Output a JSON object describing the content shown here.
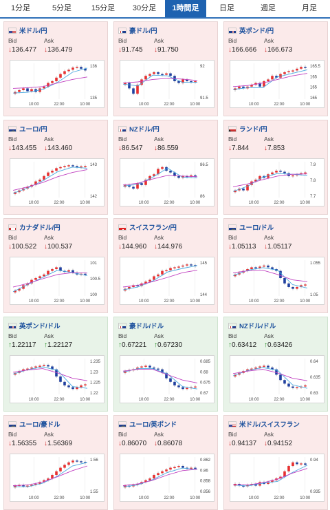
{
  "tabs": [
    "1分足",
    "5分足",
    "15分足",
    "30分足",
    "1時間足",
    "日足",
    "週足",
    "月足"
  ],
  "active_tab": 4,
  "bid_label": "Bid",
  "ask_label": "Ask",
  "x_ticks": [
    "10:00",
    "22:00",
    "10:00"
  ],
  "colors": {
    "up_candle": "#e83030",
    "down_candle": "#2040a0",
    "ma_short": "#4aa8e0",
    "ma_long": "#c040c0"
  },
  "cards": [
    {
      "pair": "米ドル/円",
      "flag": "us-flag",
      "dir": "down",
      "bid": "136.477",
      "ask": "136.479",
      "ticks": [
        "136",
        "135"
      ],
      "trend": [
        0.2,
        0.25,
        0.3,
        0.22,
        0.28,
        0.2,
        0.3,
        0.35,
        0.45,
        0.5,
        0.6,
        0.7,
        0.78,
        0.82,
        0.88,
        0.9,
        0.85,
        0.8
      ],
      "ma": [
        0.3,
        0.32,
        0.35,
        0.45,
        0.55,
        0.62
      ]
    },
    {
      "pair": "豪ドル/円",
      "flag": "au-flag",
      "dir": "down",
      "bid": "91.745",
      "ask": "91.750",
      "ticks": [
        "92",
        "91.5"
      ],
      "trend": [
        0.45,
        0.3,
        0.15,
        0.4,
        0.55,
        0.65,
        0.7,
        0.75,
        0.7,
        0.68,
        0.72,
        0.65,
        0.5,
        0.45,
        0.55,
        0.5,
        0.48,
        0.5
      ],
      "ma": [
        0.45,
        0.48,
        0.55,
        0.58,
        0.56,
        0.52
      ]
    },
    {
      "pair": "英ポンド/円",
      "flag": "uk-flag",
      "dir": "down",
      "bid": "166.666",
      "ask": "166.673",
      "ticks": [
        "165.5",
        "165",
        "165",
        "165"
      ],
      "trend": [
        0.3,
        0.35,
        0.3,
        0.35,
        0.4,
        0.45,
        0.35,
        0.5,
        0.55,
        0.65,
        0.6,
        0.7,
        0.75,
        0.78,
        0.8,
        0.85,
        0.9,
        0.88
      ],
      "ma": [
        0.35,
        0.38,
        0.45,
        0.55,
        0.65,
        0.72
      ]
    },
    {
      "pair": "ユーロ/円",
      "flag": "eu-flag",
      "dir": "down",
      "bid": "143.455",
      "ask": "143.460",
      "ticks": [
        "143",
        "142"
      ],
      "trend": [
        0.15,
        0.2,
        0.25,
        0.3,
        0.35,
        0.45,
        0.5,
        0.6,
        0.7,
        0.75,
        0.82,
        0.85,
        0.88,
        0.9,
        0.88,
        0.85,
        0.87,
        0.88
      ],
      "ma": [
        0.2,
        0.3,
        0.42,
        0.58,
        0.7,
        0.78
      ]
    },
    {
      "pair": "NZドル/円",
      "flag": "nz-flag",
      "dir": "down",
      "bid": "86.547",
      "ask": "86.559",
      "ticks": [
        "86.5",
        "86"
      ],
      "trend": [
        0.35,
        0.3,
        0.25,
        0.4,
        0.35,
        0.5,
        0.6,
        0.65,
        0.8,
        0.85,
        0.75,
        0.7,
        0.6,
        0.55,
        0.6,
        0.58,
        0.62,
        0.6
      ],
      "ma": [
        0.35,
        0.4,
        0.52,
        0.62,
        0.6,
        0.58
      ]
    },
    {
      "pair": "ランド/円",
      "flag": "za-flag",
      "dir": "down",
      "bid": "7.844",
      "ask": "7.853",
      "ticks": [
        "7.9",
        "7.8",
        "7.7"
      ],
      "trend": [
        0.2,
        0.25,
        0.2,
        0.35,
        0.45,
        0.5,
        0.6,
        0.55,
        0.65,
        0.7,
        0.75,
        0.72,
        0.68,
        0.6,
        0.62,
        0.65,
        0.68,
        0.7
      ],
      "ma": [
        0.3,
        0.38,
        0.5,
        0.6,
        0.65,
        0.66
      ]
    },
    {
      "pair": "カナダドル/円",
      "flag": "ca-flag",
      "dir": "down",
      "bid": "100.522",
      "ask": "100.537",
      "ticks": [
        "101",
        "100.5",
        "100"
      ],
      "trend": [
        0.15,
        0.2,
        0.3,
        0.35,
        0.45,
        0.5,
        0.55,
        0.6,
        0.7,
        0.75,
        0.8,
        0.7,
        0.68,
        0.72,
        0.65,
        0.6,
        0.62,
        0.6
      ],
      "ma": [
        0.25,
        0.35,
        0.48,
        0.6,
        0.65,
        0.64
      ]
    },
    {
      "pair": "スイスフラン/円",
      "flag": "ch-flag",
      "dir": "down",
      "bid": "144.960",
      "ask": "144.976",
      "ticks": [
        "145",
        "144"
      ],
      "trend": [
        0.2,
        0.25,
        0.3,
        0.28,
        0.35,
        0.4,
        0.45,
        0.55,
        0.6,
        0.7,
        0.72,
        0.78,
        0.8,
        0.82,
        0.85,
        0.88,
        0.86,
        0.84
      ],
      "ma": [
        0.25,
        0.3,
        0.4,
        0.52,
        0.65,
        0.72
      ]
    },
    {
      "pair": "ユーロ/ドル",
      "flag": "eu-flag",
      "dir": "down",
      "bid": "1.05113",
      "ask": "1.05117",
      "ticks": [
        "1.055",
        "1.05"
      ],
      "trend": [
        0.6,
        0.65,
        0.7,
        0.75,
        0.8,
        0.78,
        0.82,
        0.85,
        0.8,
        0.75,
        0.7,
        0.5,
        0.35,
        0.25,
        0.2,
        0.25,
        0.3,
        0.32
      ],
      "ma": [
        0.65,
        0.7,
        0.72,
        0.6,
        0.45,
        0.4
      ]
    },
    {
      "pair": "英ポンド/ドル",
      "flag": "uk-flag",
      "dir": "up",
      "bid": "1.22117",
      "ask": "1.22127",
      "ticks": [
        "1.235",
        "1.23",
        "1.225",
        "1.22"
      ],
      "trend": [
        0.6,
        0.65,
        0.7,
        0.72,
        0.75,
        0.78,
        0.8,
        0.82,
        0.78,
        0.7,
        0.5,
        0.35,
        0.25,
        0.2,
        0.15,
        0.2,
        0.25,
        0.28
      ],
      "ma": [
        0.62,
        0.68,
        0.72,
        0.6,
        0.45,
        0.38
      ]
    },
    {
      "pair": "豪ドル/ドル",
      "flag": "au-flag",
      "dir": "up",
      "bid": "0.67221",
      "ask": "0.67230",
      "ticks": [
        "0.685",
        "0.68",
        "0.675",
        "0.67"
      ],
      "trend": [
        0.65,
        0.68,
        0.7,
        0.75,
        0.78,
        0.8,
        0.75,
        0.72,
        0.7,
        0.6,
        0.45,
        0.35,
        0.25,
        0.2,
        0.15,
        0.18,
        0.2,
        0.22
      ],
      "ma": [
        0.65,
        0.7,
        0.7,
        0.55,
        0.4,
        0.32
      ]
    },
    {
      "pair": "NZドル/ドル",
      "flag": "nz-flag",
      "dir": "up",
      "bid": "0.63412",
      "ask": "0.63426",
      "ticks": [
        "0.64",
        "0.635",
        "0.63"
      ],
      "trend": [
        0.55,
        0.6,
        0.65,
        0.7,
        0.72,
        0.75,
        0.78,
        0.8,
        0.75,
        0.7,
        0.55,
        0.4,
        0.3,
        0.22,
        0.18,
        0.2,
        0.22,
        0.25
      ],
      "ma": [
        0.58,
        0.65,
        0.7,
        0.6,
        0.45,
        0.38
      ]
    },
    {
      "pair": "ユーロ/豪ドル",
      "flag": "eu-flag",
      "dir": "down",
      "bid": "1.56355",
      "ask": "1.56369",
      "ticks": [
        "1.56",
        "1.55"
      ],
      "trend": [
        0.2,
        0.22,
        0.18,
        0.2,
        0.22,
        0.25,
        0.3,
        0.35,
        0.4,
        0.5,
        0.6,
        0.7,
        0.78,
        0.85,
        0.9,
        0.88,
        0.86,
        0.84
      ],
      "ma": [
        0.2,
        0.22,
        0.3,
        0.45,
        0.62,
        0.75
      ]
    },
    {
      "pair": "ユーロ/英ポンド",
      "flag": "eu-flag",
      "dir": "down",
      "bid": "0.86070",
      "ask": "0.86078",
      "ticks": [
        "0.862",
        "0.86",
        "0.858",
        "0.856"
      ],
      "trend": [
        0.2,
        0.18,
        0.22,
        0.25,
        0.3,
        0.35,
        0.4,
        0.5,
        0.55,
        0.6,
        0.65,
        0.7,
        0.72,
        0.75,
        0.7,
        0.68,
        0.7,
        0.68
      ],
      "ma": [
        0.2,
        0.25,
        0.35,
        0.5,
        0.62,
        0.66
      ]
    },
    {
      "pair": "米ドル/スイスフラン",
      "flag": "us-flag",
      "dir": "down",
      "bid": "0.94137",
      "ask": "0.94152",
      "ticks": [
        "0.94",
        "0.935"
      ],
      "trend": [
        0.25,
        0.2,
        0.18,
        0.22,
        0.25,
        0.2,
        0.3,
        0.25,
        0.3,
        0.35,
        0.4,
        0.45,
        0.6,
        0.75,
        0.85,
        0.8,
        0.82,
        0.78
      ],
      "ma": [
        0.22,
        0.22,
        0.28,
        0.38,
        0.55,
        0.68
      ]
    }
  ]
}
